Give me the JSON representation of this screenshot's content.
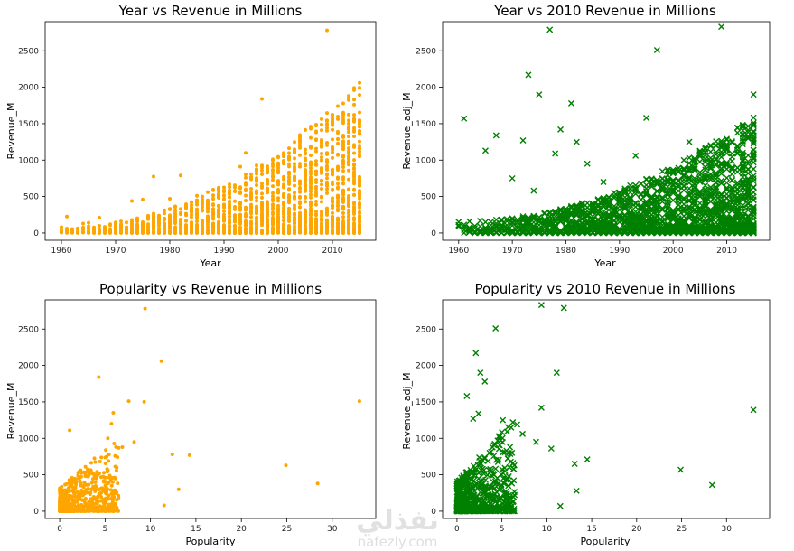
{
  "colors": {
    "orange": "#FFA500",
    "green": "#008000"
  },
  "watermark": {
    "arabic": "نفذلي",
    "latin": "nafezly.com"
  },
  "chart_data": [
    {
      "type": "scatter",
      "title": "Year vs Revenue in Millions",
      "xlabel": "Year",
      "ylabel": "Revenue_M",
      "xlim": [
        1957,
        2018
      ],
      "ylim": [
        -100,
        2900
      ],
      "xticks": [
        "1960",
        "1970",
        "1980",
        "1990",
        "2000",
        "2010"
      ],
      "xtick_values": [
        1960,
        1970,
        1980,
        1990,
        2000,
        2010
      ],
      "yticks": [
        "0",
        "500",
        "1000",
        "1500",
        "2000",
        "2500"
      ],
      "ytick_values": [
        0,
        500,
        1000,
        1500,
        2000,
        2500
      ],
      "marker": "dot",
      "color": "#FFA500",
      "points": [
        [
          2009,
          2780
        ],
        [
          1997,
          1840
        ],
        [
          2015,
          2060
        ],
        [
          2012,
          1510
        ],
        [
          2015,
          1500
        ],
        [
          2015,
          1400
        ],
        [
          2014,
          1210
        ],
        [
          2015,
          1160
        ],
        [
          2003,
          1120
        ],
        [
          1994,
          1100
        ],
        [
          2011,
          1080
        ],
        [
          2008,
          1000
        ],
        [
          1993,
          910
        ],
        [
          2001,
          970
        ],
        [
          1982,
          790
        ],
        [
          1977,
          775
        ],
        [
          1999,
          820
        ],
        [
          2010,
          1030
        ],
        [
          2013,
          1020
        ],
        [
          2007,
          940
        ],
        [
          1973,
          440
        ],
        [
          1975,
          460
        ],
        [
          1980,
          470
        ],
        [
          1985,
          510
        ],
        [
          1989,
          500
        ],
        [
          1987,
          560
        ],
        [
          1961,
          225
        ],
        [
          1967,
          210
        ],
        [
          1965,
          140
        ],
        [
          1964,
          130
        ]
      ],
      "dense": {
        "from_year": 1960,
        "to_year": 2015,
        "base_max": 80,
        "growth": 22
      }
    },
    {
      "type": "scatter",
      "title": "Year vs 2010 Revenue in Millions",
      "xlabel": "Year",
      "ylabel": "Revenue_adj_M",
      "xlim": [
        1957,
        2018
      ],
      "ylim": [
        -100,
        2900
      ],
      "xticks": [
        "1960",
        "1970",
        "1980",
        "1990",
        "2000",
        "2010"
      ],
      "xtick_values": [
        1960,
        1970,
        1980,
        1990,
        2000,
        2010
      ],
      "yticks": [
        "0",
        "500",
        "1000",
        "1500",
        "2000",
        "2500"
      ],
      "ytick_values": [
        0,
        500,
        1000,
        1500,
        2000,
        2500
      ],
      "marker": "x",
      "color": "#008000",
      "points": [
        [
          2009,
          2830
        ],
        [
          1977,
          2790
        ],
        [
          1997,
          2510
        ],
        [
          1973,
          2170
        ],
        [
          1975,
          1900
        ],
        [
          2015,
          1900
        ],
        [
          1961,
          1570
        ],
        [
          1995,
          1580
        ],
        [
          1981,
          1780
        ],
        [
          1979,
          1420
        ],
        [
          1967,
          1340
        ],
        [
          1972,
          1270
        ],
        [
          1982,
          1250
        ],
        [
          2012,
          1440
        ],
        [
          2015,
          1380
        ],
        [
          1965,
          1130
        ],
        [
          1978,
          1090
        ],
        [
          2003,
          1250
        ],
        [
          2007,
          1190
        ],
        [
          1993,
          1060
        ],
        [
          1984,
          950
        ],
        [
          1970,
          750
        ],
        [
          1974,
          580
        ],
        [
          1987,
          700
        ]
      ],
      "dense": {
        "from_year": 1960,
        "to_year": 2015,
        "base_max": 160,
        "growth": 16
      }
    },
    {
      "type": "scatter",
      "title": "Popularity vs Revenue in Millions",
      "xlabel": "Popularity",
      "ylabel": "Revenue_M",
      "xlim": [
        -1.6,
        34.8
      ],
      "ylim": [
        -100,
        2900
      ],
      "xticks": [
        "0",
        "5",
        "10",
        "15",
        "20",
        "25",
        "30"
      ],
      "xtick_values": [
        0,
        5,
        10,
        15,
        20,
        25,
        30
      ],
      "yticks": [
        "0",
        "500",
        "1000",
        "1500",
        "2000",
        "2500"
      ],
      "ytick_values": [
        0,
        500,
        1000,
        1500,
        2000,
        2500
      ],
      "marker": "dot",
      "color": "#FFA500",
      "points": [
        [
          9.4,
          2780
        ],
        [
          11.2,
          2060
        ],
        [
          4.3,
          1840
        ],
        [
          7.6,
          1510
        ],
        [
          9.3,
          1500
        ],
        [
          33,
          1510
        ],
        [
          5.9,
          1350
        ],
        [
          5.7,
          1200
        ],
        [
          1.1,
          1110
        ],
        [
          12.4,
          780
        ],
        [
          14.3,
          770
        ],
        [
          13.1,
          300
        ],
        [
          11.5,
          80
        ],
        [
          24.9,
          630
        ],
        [
          28.4,
          380
        ],
        [
          8.2,
          950
        ],
        [
          6.9,
          880
        ],
        [
          5.3,
          1000
        ]
      ],
      "dense": {
        "xmax": 6.5,
        "ymax": 700
      }
    },
    {
      "type": "scatter",
      "title": "Popularity vs 2010 Revenue in Millions",
      "xlabel": "Popularity",
      "ylabel": "Revenue_adj_M",
      "xlim": [
        -1.6,
        34.8
      ],
      "ylim": [
        -100,
        2900
      ],
      "xticks": [
        "0",
        "5",
        "10",
        "15",
        "20",
        "25",
        "30"
      ],
      "xtick_values": [
        0,
        5,
        10,
        15,
        20,
        25,
        30
      ],
      "yticks": [
        "0",
        "500",
        "1000",
        "1500",
        "2000",
        "2500"
      ],
      "ytick_values": [
        0,
        500,
        1000,
        1500,
        2000,
        2500
      ],
      "marker": "x",
      "color": "#008000",
      "points": [
        [
          9.4,
          2830
        ],
        [
          11.9,
          2790
        ],
        [
          4.3,
          2510
        ],
        [
          2.1,
          2170
        ],
        [
          2.6,
          1900
        ],
        [
          11.1,
          1900
        ],
        [
          1.1,
          1580
        ],
        [
          3.1,
          1780
        ],
        [
          9.4,
          1420
        ],
        [
          33,
          1390
        ],
        [
          2.4,
          1340
        ],
        [
          1.8,
          1270
        ],
        [
          5.1,
          1250
        ],
        [
          6.7,
          1190
        ],
        [
          14.5,
          710
        ],
        [
          13.1,
          650
        ],
        [
          13.3,
          280
        ],
        [
          11.5,
          70
        ],
        [
          24.9,
          570
        ],
        [
          28.4,
          360
        ],
        [
          7.3,
          1060
        ],
        [
          8.8,
          950
        ],
        [
          10.5,
          860
        ]
      ],
      "dense": {
        "xmax": 6.5,
        "ymax": 900
      }
    }
  ]
}
